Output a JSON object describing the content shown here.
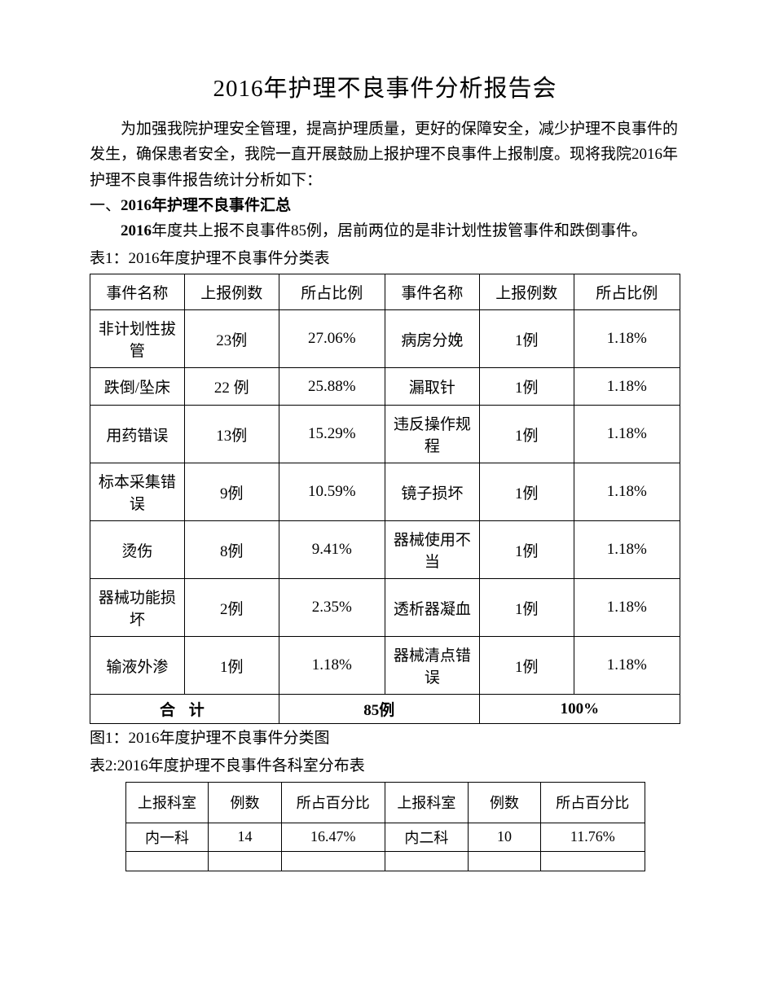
{
  "title": "2016年护理不良事件分析报告会",
  "intro": "为加强我院护理安全管理，提高护理质量，更好的保障安全，减少护理不良事件的发生，确保患者安全，我院一直开展鼓励上报护理不良事件上报制度。现将我院2016年护理不良事件报告统计分析如下：",
  "section1Prefix": "一、",
  "section1Bold": "2016年护理不良事件汇总",
  "summaryPrefix": "2016",
  "summaryRest": "年度共上报不良事件85例，居前两位的是非计划性拔管事件和跌倒事件。",
  "table1Caption": "表1：2016年度护理不良事件分类表",
  "table1": {
    "headers": [
      "事件名称",
      "上报例数",
      "所占比例",
      "事件名称",
      "上报例数",
      "所占比例"
    ],
    "rows": [
      {
        "tall": true,
        "c": [
          "非计划性拔管",
          "23例",
          "27.06%",
          "病房分娩",
          "1例",
          "1.18%"
        ]
      },
      {
        "tall": false,
        "c": [
          "跌倒/坠床",
          "22 例",
          "25.88%",
          "漏取针",
          "1例",
          "1.18%"
        ]
      },
      {
        "tall": true,
        "c": [
          "用药错误",
          "13例",
          "15.29%",
          "违反操作规程",
          "1例",
          "1.18%"
        ]
      },
      {
        "tall": true,
        "c": [
          "标本采集错误",
          "9例",
          "10.59%",
          "镜子损坏",
          "1例",
          "1.18%"
        ]
      },
      {
        "tall": true,
        "c": [
          "烫伤",
          "8例",
          "9.41%",
          "器械使用不当",
          "1例",
          "1.18%"
        ]
      },
      {
        "tall": true,
        "c": [
          "器械功能损坏",
          "2例",
          "2.35%",
          "透析器凝血",
          "1例",
          "1.18%"
        ]
      },
      {
        "tall": true,
        "c": [
          "输液外渗",
          "1例",
          "1.18%",
          "器械清点错误",
          "1例",
          "1.18%"
        ]
      }
    ],
    "totalLabel": "合 计",
    "totalCount": "85例",
    "totalPct": "100%"
  },
  "fig1Caption": "图1：2016年度护理不良事件分类图",
  "table2Caption": "表2:2016年度护理不良事件各科室分布表",
  "table2": {
    "headers": [
      "上报科室",
      "例数",
      "所占百分比",
      "上报科室",
      "例数",
      "所占百分比"
    ],
    "row1": [
      "内一科",
      "14",
      "16.47%",
      "内二科",
      "10",
      "11.76%"
    ]
  },
  "style": {
    "page_bg": "#ffffff",
    "text_color": "#000000",
    "border_color": "#000000",
    "title_fontsize": 29,
    "body_fontsize": 19,
    "font_family": "SimSun"
  }
}
